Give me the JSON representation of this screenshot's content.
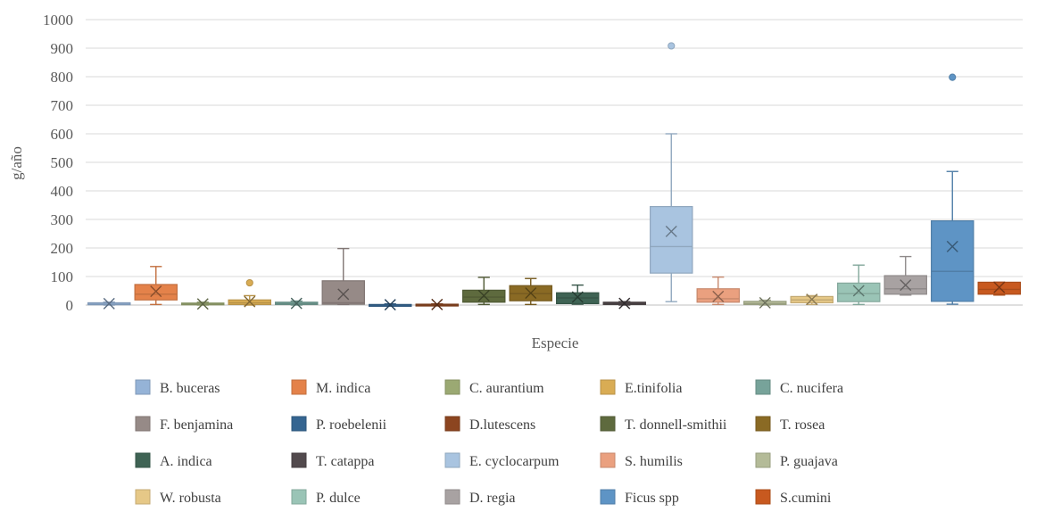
{
  "chart_data": {
    "type": "boxplot",
    "title": "",
    "xlabel": "Especie",
    "ylabel": "g/año",
    "ylim": [
      0,
      1000
    ],
    "yticks": [
      0,
      100,
      200,
      300,
      400,
      500,
      600,
      700,
      800,
      900,
      1000
    ],
    "grid": true,
    "legend_position": "bottom",
    "series": [
      {
        "name": "B. buceras",
        "color": "#95B3D7",
        "min": 0,
        "q1": 1,
        "median": 3,
        "q3": 8,
        "max": 10,
        "mean": 5,
        "outliers": []
      },
      {
        "name": "M. indica",
        "color": "#E4824A",
        "min": 2,
        "q1": 18,
        "median": 38,
        "q3": 72,
        "max": 135,
        "mean": 48,
        "outliers": []
      },
      {
        "name": "C. aurantium",
        "color": "#9BA973",
        "min": 0,
        "q1": 1,
        "median": 3,
        "q3": 7,
        "max": 10,
        "mean": 4,
        "outliers": []
      },
      {
        "name": "E.tinifolia",
        "color": "#D9AC54",
        "min": 0,
        "q1": 2,
        "median": 8,
        "q3": 18,
        "max": 33,
        "mean": 12,
        "outliers": [
          78
        ]
      },
      {
        "name": "C. nucifera",
        "color": "#77A39A",
        "min": 0,
        "q1": 2,
        "median": 5,
        "q3": 10,
        "max": 14,
        "mean": 6,
        "outliers": []
      },
      {
        "name": "F. benjamina",
        "color": "#968A87",
        "min": 2,
        "q1": 3,
        "median": 8,
        "q3": 85,
        "max": 198,
        "mean": 38,
        "outliers": []
      },
      {
        "name": "P. roebelenii",
        "color": "#356591",
        "min": 0,
        "q1": 0,
        "median": 1,
        "q3": 2,
        "max": 4,
        "mean": 1,
        "outliers": []
      },
      {
        "name": "D.lutescens",
        "color": "#8C4520",
        "min": 0,
        "q1": 0,
        "median": 1,
        "q3": 3,
        "max": 4,
        "mean": 2,
        "outliers": []
      },
      {
        "name": "T. donnell-smithii",
        "color": "#5E6A3E",
        "min": 2,
        "q1": 10,
        "median": 28,
        "q3": 52,
        "max": 97,
        "mean": 33,
        "outliers": []
      },
      {
        "name": "T. rosea",
        "color": "#8A6A24",
        "min": 2,
        "q1": 15,
        "median": 40,
        "q3": 68,
        "max": 93,
        "mean": 42,
        "outliers": []
      },
      {
        "name": "A. indica",
        "color": "#3F6354",
        "min": 3,
        "q1": 5,
        "median": 25,
        "q3": 43,
        "max": 70,
        "mean": 28,
        "outliers": []
      },
      {
        "name": "T. catappa",
        "color": "#524A4D",
        "min": 0,
        "q1": 2,
        "median": 5,
        "q3": 10,
        "max": 12,
        "mean": 6,
        "outliers": []
      },
      {
        "name": "E. cyclocarpum",
        "color": "#A9C4E0",
        "min": 12,
        "q1": 112,
        "median": 205,
        "q3": 345,
        "max": 600,
        "mean": 258,
        "outliers": [
          908
        ]
      },
      {
        "name": "S. humilis",
        "color": "#EAA07F",
        "min": 2,
        "q1": 10,
        "median": 22,
        "q3": 57,
        "max": 98,
        "mean": 30,
        "outliers": []
      },
      {
        "name": "P. guajava",
        "color": "#B4BB98",
        "min": 0,
        "q1": 2,
        "median": 5,
        "q3": 13,
        "max": 17,
        "mean": 8,
        "outliers": []
      },
      {
        "name": "W. robusta",
        "color": "#E6C887",
        "min": 2,
        "q1": 8,
        "median": 18,
        "q3": 30,
        "max": 33,
        "mean": 20,
        "outliers": []
      },
      {
        "name": "P. dulce",
        "color": "#9AC4B6",
        "min": 2,
        "q1": 12,
        "median": 40,
        "q3": 77,
        "max": 140,
        "mean": 50,
        "outliers": []
      },
      {
        "name": "D. regia",
        "color": "#A8A2A2",
        "min": 35,
        "q1": 38,
        "median": 57,
        "q3": 103,
        "max": 170,
        "mean": 70,
        "outliers": []
      },
      {
        "name": "Ficus spp",
        "color": "#5E94C5",
        "min": 3,
        "q1": 13,
        "median": 118,
        "q3": 295,
        "max": 468,
        "mean": 205,
        "outliers": [
          798
        ]
      },
      {
        "name": "S.cumini",
        "color": "#C8591F",
        "min": 35,
        "q1": 38,
        "median": 55,
        "q3": 80,
        "max": 80,
        "mean": 62,
        "outliers": []
      }
    ]
  }
}
